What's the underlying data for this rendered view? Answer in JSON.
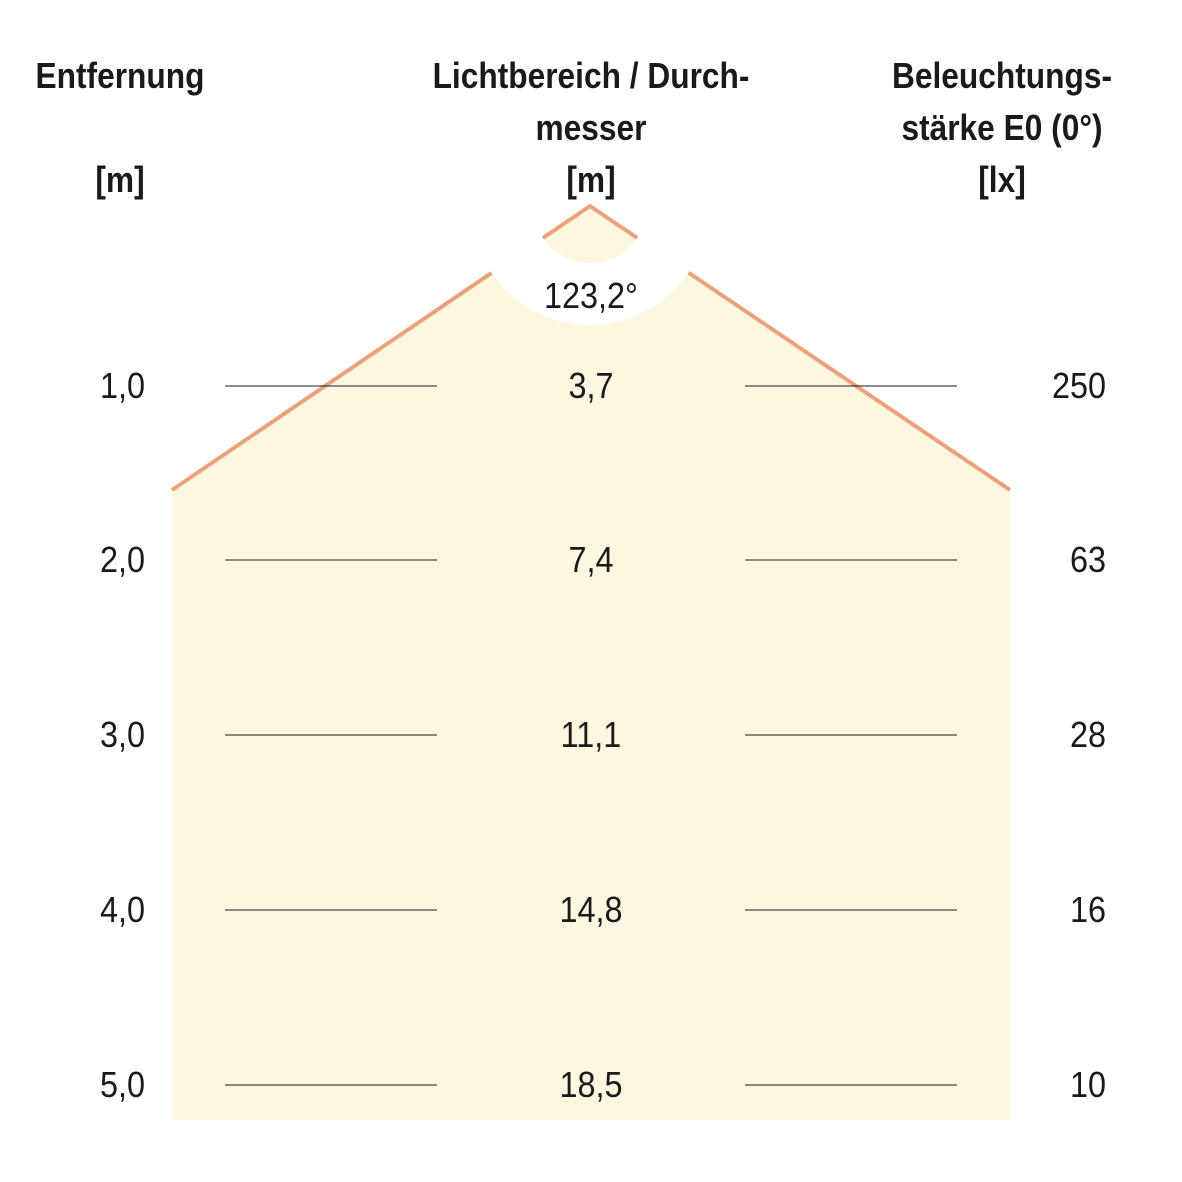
{
  "headers": {
    "distance": {
      "line1": "Entfernung",
      "unit": "[m]"
    },
    "diameter": {
      "line1": "Lichtbereich / Durch-",
      "line2": "messer",
      "unit": "[m]"
    },
    "illuminance": {
      "line1": "Beleuchtungs-",
      "line2": "stärke E0 (0°)",
      "unit": "[lx]"
    }
  },
  "beam_angle": "123,2°",
  "rows": [
    {
      "distance": "1,0",
      "diameter": "3,7",
      "illuminance": "250"
    },
    {
      "distance": "2,0",
      "diameter": "7,4",
      "illuminance": "63"
    },
    {
      "distance": "3,0",
      "diameter": "11,1",
      "illuminance": "28"
    },
    {
      "distance": "4,0",
      "diameter": "14,8",
      "illuminance": "16"
    },
    {
      "distance": "5,0",
      "diameter": "18,5",
      "illuminance": "10"
    }
  ],
  "colors": {
    "beam_fill": "#fdf7e0",
    "beam_edge": "#eba27a",
    "text": "#1a1a1a"
  }
}
